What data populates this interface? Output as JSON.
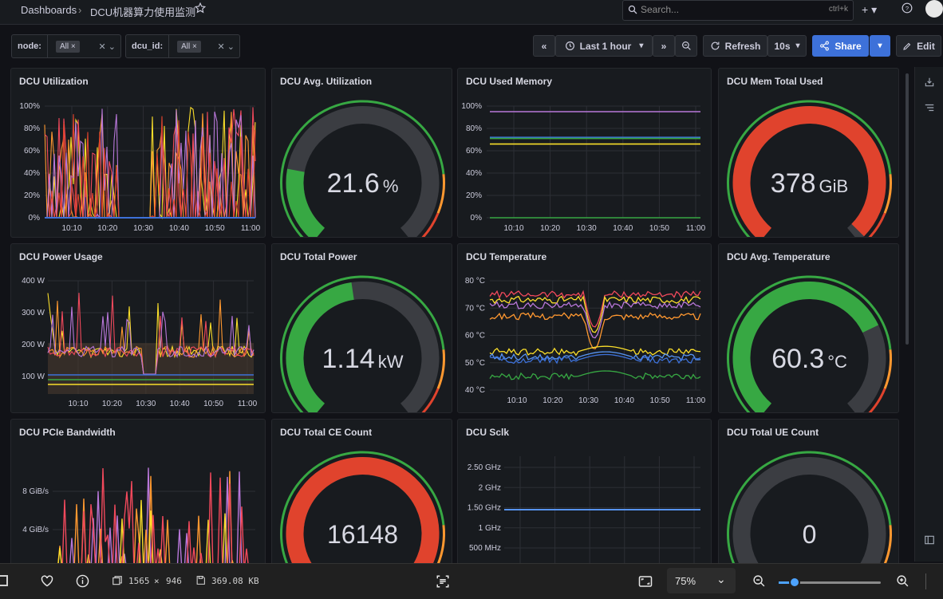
{
  "breadcrumb": {
    "root": "Dashboards",
    "separator": "›",
    "current": "DCU机器算力使用监测"
  },
  "search": {
    "placeholder": "Search...",
    "shortcut": "ctrl+k"
  },
  "variables": [
    {
      "label": "node:",
      "value": "All"
    },
    {
      "label": "dcu_id:",
      "value": "All"
    }
  ],
  "toolbar": {
    "time_range": "Last 1 hour",
    "refresh_label": "Refresh",
    "refresh_interval": "10s",
    "share_label": "Share",
    "edit_label": "Edit"
  },
  "colors": {
    "green": "#37a843",
    "red": "#e0432d",
    "orange": "#ff9830",
    "blue": "#3d71d9",
    "yellow": "#fade2a",
    "purple": "#b877d9",
    "pink": "#f2495c",
    "cyan": "#5794f2"
  },
  "panels": {
    "util": {
      "title": "DCU Utilization",
      "yticks": [
        "100%",
        "80%",
        "60%",
        "40%",
        "20%",
        "0%"
      ],
      "xticks": [
        "10:10",
        "10:20",
        "10:30",
        "10:40",
        "10:50",
        "11:00"
      ]
    },
    "avg_util": {
      "title": "DCU Avg. Utilization",
      "value": "21.6",
      "unit": "%",
      "fraction": 0.216
    },
    "mem": {
      "title": "DCU Used Memory",
      "yticks": [
        "100%",
        "80%",
        "60%",
        "40%",
        "20%",
        "0%"
      ],
      "xticks": [
        "10:10",
        "10:20",
        "10:30",
        "10:40",
        "10:50",
        "11:00"
      ]
    },
    "mem_total": {
      "title": "DCU Mem Total Used",
      "value": "378",
      "unit": "GiB",
      "fraction": 0.98
    },
    "power": {
      "title": "DCU Power Usage",
      "yticks": [
        "400 W",
        "300 W",
        "200 W",
        "100 W"
      ],
      "xticks": [
        "10:10",
        "10:20",
        "10:30",
        "10:40",
        "10:50",
        "11:00"
      ]
    },
    "total_power": {
      "title": "DCU Total Power",
      "value": "1.14",
      "unit": "kW",
      "fraction": 0.47
    },
    "temp": {
      "title": "DCU Temperature",
      "yticks": [
        "80 °C",
        "70 °C",
        "60 °C",
        "50 °C",
        "40 °C"
      ],
      "xticks": [
        "10:10",
        "10:20",
        "10:30",
        "10:40",
        "10:50",
        "11:00"
      ]
    },
    "avg_temp": {
      "title": "DCU Avg. Temperature",
      "value": "60.3",
      "unit": "°C",
      "fraction": 0.73
    },
    "pcie": {
      "title": "DCU PCIe Bandwidth",
      "yticks": [
        "8 GiB/s",
        "4 GiB/s"
      ]
    },
    "ce": {
      "title": "DCU Total CE Count",
      "value": "16148",
      "unit": "",
      "fraction": 0.98
    },
    "sclk": {
      "title": "DCU Sclk",
      "yticks": [
        "2.50 GHz",
        "2 GHz",
        "1.50 GHz",
        "1 GHz",
        "500 MHz"
      ]
    },
    "ue": {
      "title": "DCU Total UE Count",
      "value": "0",
      "unit": "",
      "fraction": 0.0
    }
  },
  "viewer": {
    "dimensions_w": "1565",
    "dimensions_x": "×",
    "dimensions_h": "946",
    "filesize": "369.08 KB",
    "zoom": "75%"
  }
}
